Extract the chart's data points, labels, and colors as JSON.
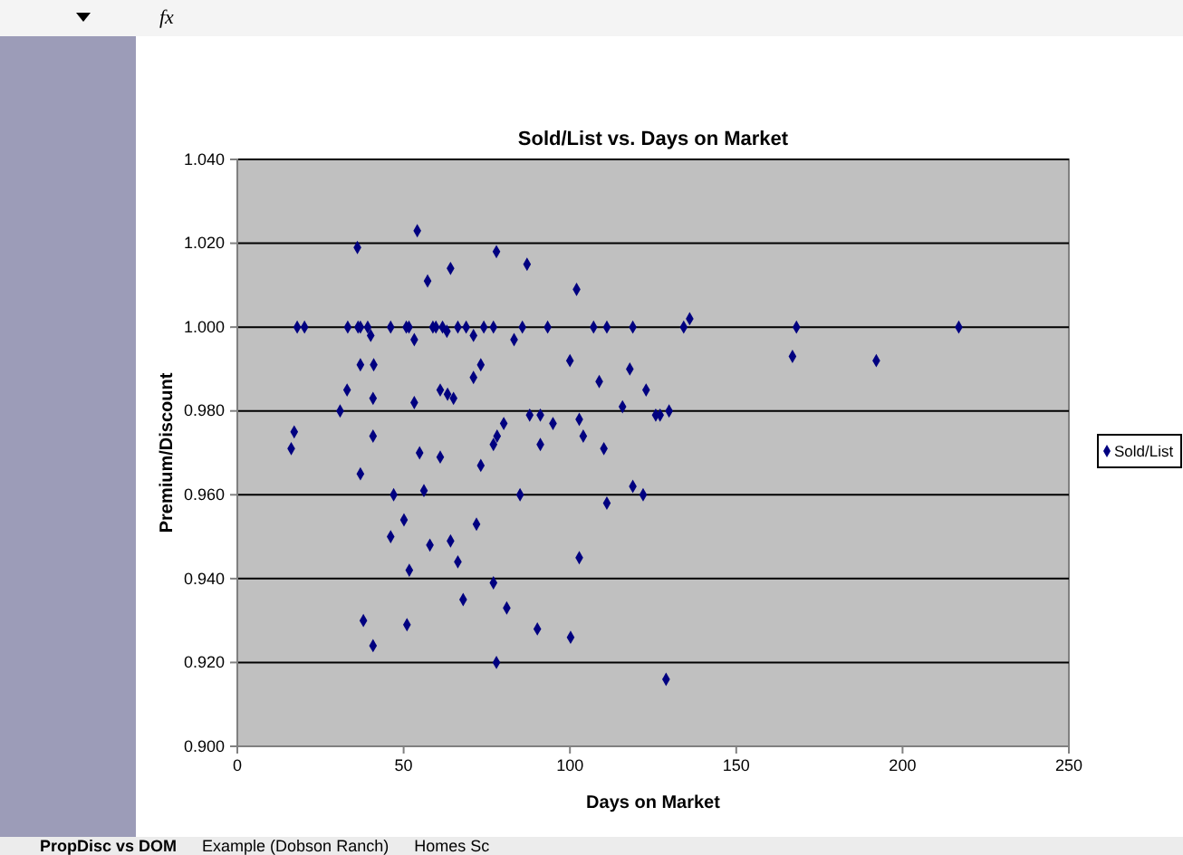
{
  "chart_data": {
    "type": "scatter",
    "title": "Sold/List vs. Days on Market",
    "xlabel": "Days on Market",
    "ylabel": "Premium/Discount",
    "xlim": [
      0,
      250
    ],
    "xticks": [
      0,
      50,
      100,
      150,
      200,
      250
    ],
    "ylim": [
      0.9,
      1.04
    ],
    "yticks": [
      {
        "value": 0.9,
        "label": "0.900"
      },
      {
        "value": 0.92,
        "label": "0.920"
      },
      {
        "value": 0.94,
        "label": "0.940"
      },
      {
        "value": 0.96,
        "label": "0.960"
      },
      {
        "value": 0.98,
        "label": "0.980"
      },
      {
        "value": 1.0,
        "label": "1.000"
      },
      {
        "value": 1.02,
        "label": "1.020"
      },
      {
        "value": 1.04,
        "label": "1.040"
      }
    ],
    "grid": "y",
    "legend": "right",
    "marker": "diamond",
    "annotations": [
      "fx",
      "PropDisc vs DOM",
      "Example (Dobson Ranch)",
      "Homes Sc"
    ],
    "series": [
      {
        "name": "Sold/List",
        "color": "#000080",
        "x": [
          16.2,
          17.1,
          18.0,
          20.2,
          30.9,
          33.0,
          33.2,
          36.1,
          36.3,
          37.0,
          37.0,
          37.0,
          37.9,
          39.2,
          40.1,
          41.0,
          40.8,
          40.8,
          40.8,
          46.1,
          46.1,
          47.0,
          50.1,
          50.8,
          51.6,
          51.0,
          51.7,
          53.2,
          53.2,
          54.1,
          54.8,
          56.1,
          57.2,
          57.9,
          58.8,
          59.7,
          61.7,
          61.0,
          61.0,
          63.2,
          63.0,
          64.1,
          64.1,
          65.0,
          66.3,
          66.3,
          67.9,
          68.8,
          71.0,
          71.0,
          71.9,
          73.2,
          73.2,
          74.1,
          77.0,
          77.0,
          77.0,
          77.9,
          77.9,
          78.1,
          80.1,
          81.0,
          83.2,
          85.0,
          85.7,
          87.1,
          87.9,
          91.1,
          91.1,
          93.3,
          94.9,
          90.2,
          100.2,
          102.0,
          100.0,
          102.8,
          102.8,
          104.0,
          107.1,
          108.8,
          110.2,
          111.1,
          111.1,
          115.8,
          118.0,
          118.9,
          118.9,
          122.0,
          122.9,
          125.8,
          127.1,
          128.9,
          129.8,
          134.2,
          136.0,
          166.9,
          168.1,
          192.1,
          216.9
        ],
        "values": [
          0.971,
          0.975,
          1.0,
          1.0,
          0.98,
          0.985,
          1.0,
          1.019,
          1.0,
          1.0,
          0.991,
          0.965,
          0.93,
          1.0,
          0.998,
          0.991,
          0.983,
          0.974,
          0.924,
          1.0,
          0.95,
          0.96,
          0.954,
          1.0,
          1.0,
          0.929,
          0.942,
          0.997,
          0.982,
          1.023,
          0.97,
          0.961,
          1.011,
          0.948,
          1.0,
          1.0,
          1.0,
          0.985,
          0.969,
          0.984,
          0.999,
          1.014,
          0.949,
          0.983,
          0.944,
          1.0,
          0.935,
          1.0,
          0.998,
          0.988,
          0.953,
          0.991,
          0.967,
          1.0,
          1.0,
          0.972,
          0.939,
          1.018,
          0.92,
          0.974,
          0.977,
          0.933,
          0.997,
          0.96,
          1.0,
          1.015,
          0.979,
          0.979,
          0.972,
          1.0,
          0.977,
          0.928,
          0.926,
          1.009,
          0.992,
          0.978,
          0.945,
          0.974,
          1.0,
          0.987,
          0.971,
          1.0,
          0.958,
          0.981,
          0.99,
          1.0,
          0.962,
          0.96,
          0.985,
          0.979,
          0.979,
          0.916,
          0.98,
          1.0,
          1.002,
          0.993,
          1.0,
          0.992,
          1.0
        ]
      }
    ]
  }
}
